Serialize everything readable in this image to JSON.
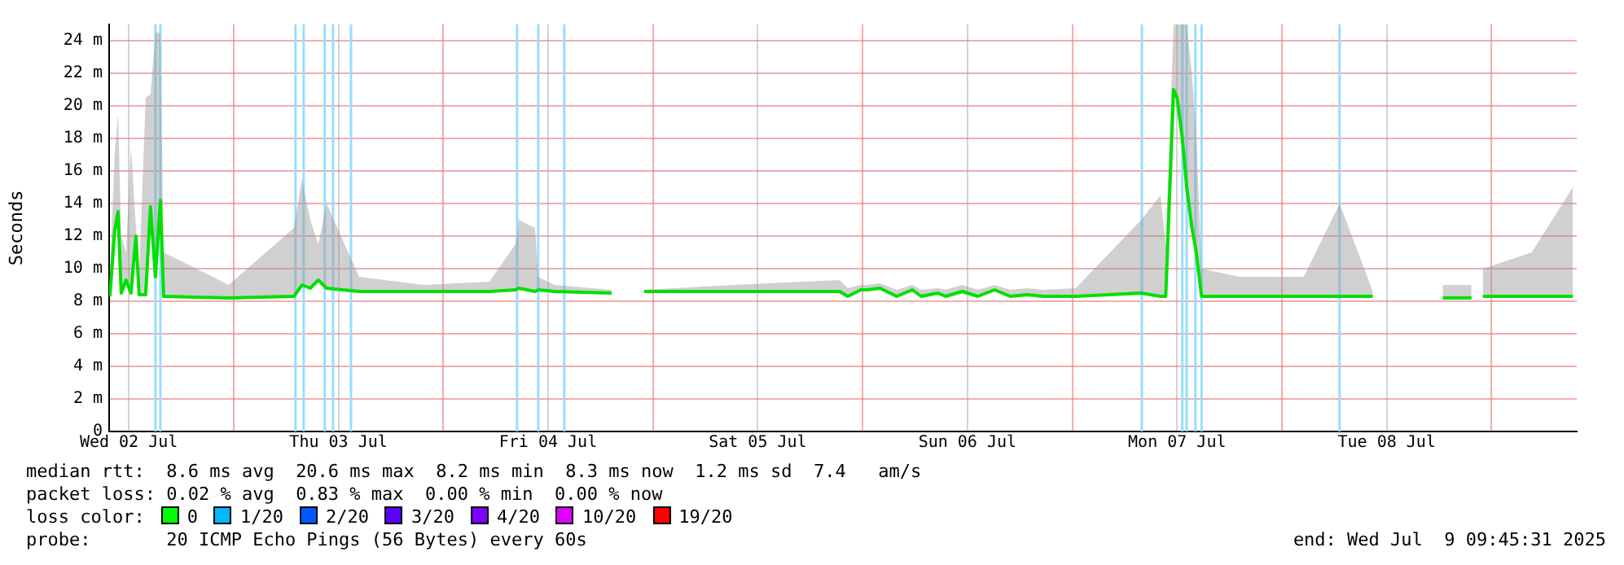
{
  "chart_data": {
    "type": "line",
    "ylabel": "Seconds",
    "xlim": [
      "2025-07-02T09:45",
      "2025-07-09T09:45"
    ],
    "xticks": [
      {
        "value": "2025-07-02T12:00",
        "label": "Wed 02 Jul"
      },
      {
        "value": "2025-07-03T00:00",
        "label": null
      },
      {
        "value": "2025-07-03T12:00",
        "label": "Thu 03 Jul"
      },
      {
        "value": "2025-07-04T00:00",
        "label": null
      },
      {
        "value": "2025-07-04T12:00",
        "label": "Fri 04 Jul"
      },
      {
        "value": "2025-07-05T00:00",
        "label": null
      },
      {
        "value": "2025-07-05T12:00",
        "label": "Sat 05 Jul"
      },
      {
        "value": "2025-07-06T00:00",
        "label": null
      },
      {
        "value": "2025-07-06T12:00",
        "label": "Sun 06 Jul"
      },
      {
        "value": "2025-07-07T00:00",
        "label": null
      },
      {
        "value": "2025-07-07T12:00",
        "label": "Mon 07 Jul"
      },
      {
        "value": "2025-07-08T00:00",
        "label": null
      },
      {
        "value": "2025-07-08T12:00",
        "label": "Tue 08 Jul"
      },
      {
        "value": "2025-07-09T00:00",
        "label": null
      }
    ],
    "ylim": [
      0,
      25
    ],
    "yticks": [
      0,
      {
        "value": 2,
        "label": "2 m"
      },
      {
        "value": 4,
        "label": "4 m"
      },
      {
        "value": 6,
        "label": "6 m"
      },
      {
        "value": 8,
        "label": "8 m"
      },
      {
        "value": 10,
        "label": "10 m"
      },
      {
        "value": 12,
        "label": "12 m"
      },
      {
        "value": 14,
        "label": "14 m"
      },
      {
        "value": 16,
        "label": "16 m"
      },
      {
        "value": 18,
        "label": "18 m"
      },
      {
        "value": 20,
        "label": "20 m"
      },
      {
        "value": 22,
        "label": "22 m"
      },
      {
        "value": 24,
        "label": "24 m"
      }
    ],
    "grid": true,
    "legend": false,
    "marker": "none",
    "line_style": "solid",
    "series": [
      {
        "color": "#00e000",
        "x": [
          "2025-07-02T09:50",
          "2025-07-02T10:23",
          "2025-07-02T10:46",
          "2025-07-02T11:08",
          "2025-07-02T11:41",
          "2025-07-02T12:15",
          "2025-07-02T12:49",
          "2025-07-02T13:11",
          "2025-07-02T13:56",
          "2025-07-02T14:29",
          "2025-07-02T15:03",
          "2025-07-02T15:37",
          "2025-07-02T15:59",
          "2025-07-02T23:26",
          "2025-07-03T06:54",
          "2025-07-03T07:50",
          "2025-07-03T08:46",
          "2025-07-03T09:42",
          "2025-07-03T10:38",
          "2025-07-03T14:22",
          "2025-07-03T21:49",
          "2025-07-04T05:17",
          "2025-07-04T08:16",
          "2025-07-04T08:38",
          "2025-07-04T10:30",
          "2025-07-04T10:52",
          "2025-07-04T12:44",
          "2025-07-04T19:16",
          "2025-07-04T21:08",
          "2025-07-04T22:59",
          "2025-07-05T09:15",
          "2025-07-05T21:22",
          "2025-07-05T22:18",
          "2025-07-05T23:48",
          "2025-07-06T00:30",
          "2025-07-06T02:00",
          "2025-07-06T03:54",
          "2025-07-06T05:42",
          "2025-07-06T06:42",
          "2025-07-06T08:36",
          "2025-07-06T09:30",
          "2025-07-06T11:24",
          "2025-07-06T13:12",
          "2025-07-06T15:06",
          "2025-07-06T16:54",
          "2025-07-06T18:48",
          "2025-07-06T20:42",
          "2025-07-07T00:24",
          "2025-07-07T07:54",
          "2025-07-07T10:06",
          "2025-07-07T10:42",
          "2025-07-07T11:36",
          "2025-07-07T12:00",
          "2025-07-07T12:36",
          "2025-07-07T13:06",
          "2025-07-07T13:42",
          "2025-07-07T14:12",
          "2025-07-07T14:48",
          "2025-07-07T19:06",
          "2025-07-08T02:30",
          "2025-07-08T06:36",
          "2025-07-08T10:24",
          "2025-07-08T13:42",
          "2025-07-08T18:24",
          "2025-07-08T21:42",
          "2025-07-08T22:18",
          "2025-07-08T23:00",
          "2025-07-09T04:36",
          "2025-07-09T09:18"
        ],
        "values": [
          8.3,
          12.3,
          13.5,
          8.5,
          9.3,
          8.5,
          12,
          8.4,
          8.4,
          13.8,
          9.5,
          14.2,
          8.3,
          8.2,
          8.3,
          9,
          8.8,
          9.3,
          8.8,
          8.6,
          8.6,
          8.6,
          8.7,
          8.8,
          8.6,
          8.7,
          8.6,
          8.5,
          null,
          8.6,
          8.6,
          8.6,
          8.3,
          8.7,
          8.7,
          8.8,
          8.3,
          8.7,
          8.3,
          8.5,
          8.3,
          8.6,
          8.3,
          8.7,
          8.3,
          8.4,
          8.3,
          8.3,
          8.5,
          8.3,
          8.3,
          21,
          20.5,
          18,
          15,
          12.5,
          11,
          8.3,
          8.3,
          8.3,
          8.3,
          8.3,
          null,
          8.2,
          8.2,
          null,
          8.3,
          8.3,
          8.3
        ],
        "lower": [
          8.3,
          12.3,
          13.5,
          8.5,
          9.3,
          8.5,
          12,
          8.4,
          8.4,
          13.8,
          9.5,
          14.2,
          8.3,
          8.2,
          8.3,
          9,
          8.8,
          9.3,
          8.8,
          8.6,
          8.6,
          8.6,
          8.7,
          8.8,
          8.6,
          8.7,
          8.6,
          8.5,
          null,
          8.6,
          8.6,
          8.6,
          8.3,
          8.7,
          8.7,
          8.8,
          8.3,
          8.7,
          8.3,
          8.5,
          8.3,
          8.6,
          8.3,
          8.7,
          8.3,
          8.4,
          8.3,
          8.3,
          8.5,
          8.3,
          8.3,
          21,
          20.5,
          18,
          15,
          12.5,
          11,
          8.3,
          8.3,
          8.3,
          8.3,
          8.3,
          null,
          8.2,
          8.2,
          null,
          8.3,
          8.3,
          8.3
        ],
        "upper": [
          9.5,
          17,
          19.5,
          12,
          11,
          17.5,
          12.5,
          9.5,
          20.5,
          20.7,
          24.5,
          24.5,
          11,
          9,
          12.5,
          15.5,
          13,
          11.5,
          14,
          9.5,
          9,
          9.2,
          11.5,
          13,
          12.5,
          9.5,
          9,
          8.7,
          null,
          8.7,
          9,
          9.3,
          8.8,
          9,
          9,
          9.1,
          8.7,
          9,
          8.7,
          8.8,
          8.7,
          9,
          8.7,
          9,
          8.7,
          8.8,
          8.7,
          8.8,
          13,
          14.5,
          11.5,
          25,
          25,
          25,
          25,
          22,
          18,
          10,
          9.5,
          9.5,
          14,
          8.6,
          null,
          9,
          9,
          null,
          10,
          11,
          15
        ]
      }
    ],
    "ref_lines": [
      {
        "axis": "x",
        "value": "2025-07-02T15:03",
        "color": "#99ddff"
      },
      {
        "axis": "x",
        "value": "2025-07-02T15:37",
        "color": "#99ddff"
      },
      {
        "axis": "x",
        "value": "2025-07-03T07:05",
        "color": "#99ddff"
      },
      {
        "axis": "x",
        "value": "2025-07-03T08:01",
        "color": "#99ddff"
      },
      {
        "axis": "x",
        "value": "2025-07-03T10:26",
        "color": "#99ddff"
      },
      {
        "axis": "x",
        "value": "2025-07-03T11:23",
        "color": "#99ddff"
      },
      {
        "axis": "x",
        "value": "2025-07-03T13:26",
        "color": "#99ddff"
      },
      {
        "axis": "x",
        "value": "2025-07-04T08:27",
        "color": "#99ddff"
      },
      {
        "axis": "x",
        "value": "2025-07-04T10:52",
        "color": "#99ddff"
      },
      {
        "axis": "x",
        "value": "2025-07-04T13:51",
        "color": "#99ddff"
      },
      {
        "axis": "x",
        "value": "2025-07-07T07:58",
        "color": "#99ddff"
      },
      {
        "axis": "x",
        "value": "2025-07-07T12:36",
        "color": "#99ddff"
      },
      {
        "axis": "x",
        "value": "2025-07-07T13:06",
        "color": "#99ddff"
      },
      {
        "axis": "x",
        "value": "2025-07-07T14:06",
        "color": "#99ddff"
      },
      {
        "axis": "x",
        "value": "2025-07-07T14:48",
        "color": "#99ddff"
      },
      {
        "axis": "x",
        "value": "2025-07-08T06:36",
        "color": "#99ddff"
      }
    ],
    "annotations": [
      "median rtt:  8.6 ms avg  20.6 ms max  8.2 ms min  8.3 ms now  1.2 ms sd  7.4   am/s",
      "packet loss: 0.02 % avg  0.83 % max  0.00 % min  0.00 % now",
      "loss color:",
      "0",
      "1/20",
      "2/20",
      "3/20",
      "4/20",
      "10/20",
      "19/20",
      "probe:       20 ICMP Echo Pings (56 Bytes) every 60s",
      "end: Wed Jul  9 09:45:31 2025"
    ]
  }
}
